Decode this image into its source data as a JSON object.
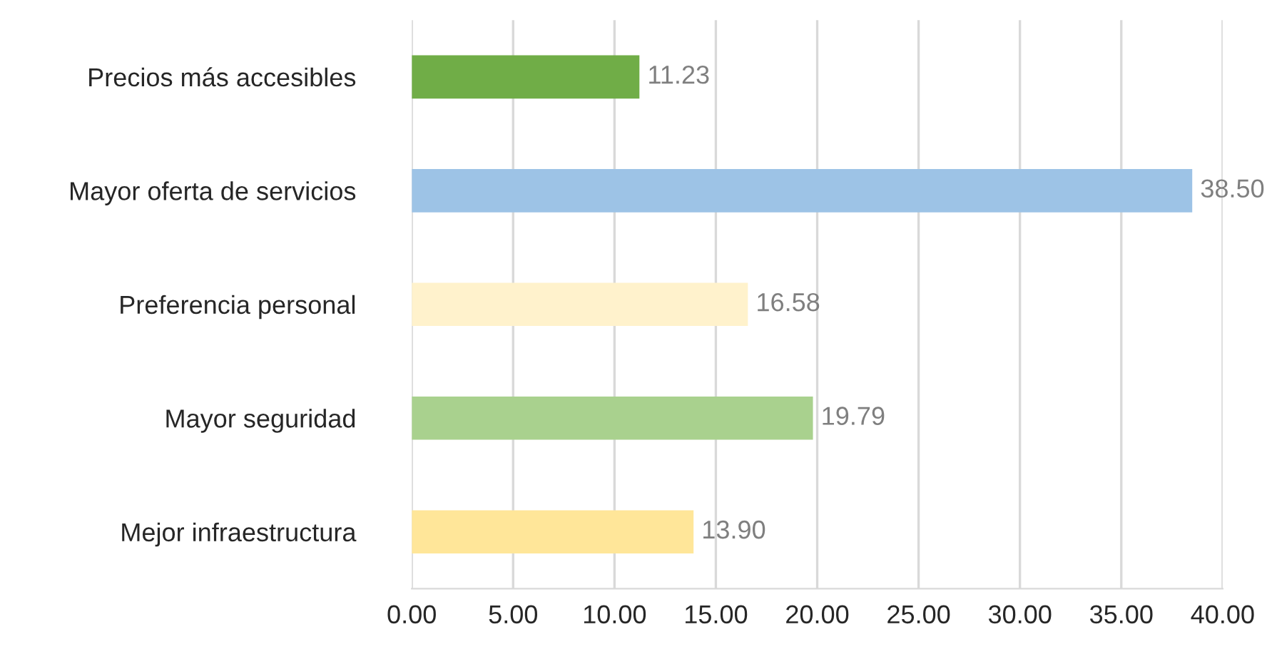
{
  "chart_data": {
    "type": "bar",
    "orientation": "horizontal",
    "categories": [
      "Precios más accesibles",
      "Mayor oferta de servicios",
      "Preferencia personal",
      "Mayor seguridad",
      "Mejor infraestructura"
    ],
    "values": [
      11.23,
      38.5,
      16.58,
      19.79,
      13.9
    ],
    "colors": [
      "#70ad47",
      "#9dc3e6",
      "#fff2cc",
      "#a9d18e",
      "#ffe699"
    ],
    "value_labels": [
      "11.23",
      "38.50",
      "16.58",
      "19.79",
      "13.90"
    ],
    "xlim": [
      0,
      40
    ],
    "xticks": [
      {
        "value": 0,
        "label": "0.00"
      },
      {
        "value": 5,
        "label": "5.00"
      },
      {
        "value": 10,
        "label": "10.00"
      },
      {
        "value": 15,
        "label": "15.00"
      },
      {
        "value": 20,
        "label": "20.00"
      },
      {
        "value": 25,
        "label": "25.00"
      },
      {
        "value": 30,
        "label": "30.00"
      },
      {
        "value": 35,
        "label": "35.00"
      },
      {
        "value": 40,
        "label": "40.00"
      }
    ],
    "grid": "x",
    "legend": false
  }
}
